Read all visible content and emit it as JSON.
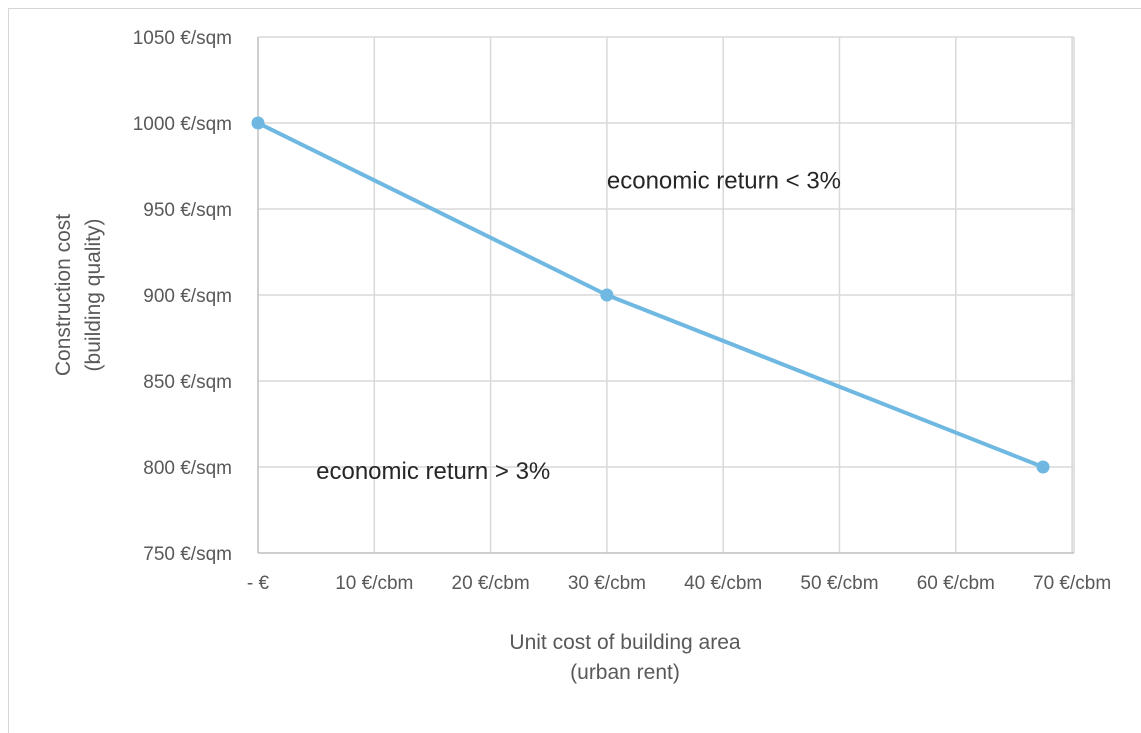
{
  "chart_data": {
    "type": "line",
    "x_ticks": [
      "- €",
      "10 €/cbm",
      "20 €/cbm",
      "30 €/cbm",
      "40 €/cbm",
      "50 €/cbm",
      "60 €/cbm",
      "70 €/cbm"
    ],
    "y_ticks": [
      "1050 €/sqm",
      "1000 €/sqm",
      "950 €/sqm",
      "900 €/sqm",
      "850 €/sqm",
      "800 €/sqm",
      "750 €/sqm"
    ],
    "xlabel": [
      "Unit cost of building area",
      "(urban rent)"
    ],
    "ylabel": [
      "Construction cost",
      "(building quality)"
    ],
    "xlim": [
      0,
      70
    ],
    "ylim": [
      750,
      1050
    ],
    "grid": true,
    "series": [
      {
        "x": [
          0,
          30,
          67.5
        ],
        "y": [
          1000,
          900,
          800
        ]
      }
    ],
    "annotations": [
      {
        "text": "economic return < 3%",
        "x": 30,
        "y": 962
      },
      {
        "text": "economic return > 3%",
        "x": 5,
        "y": 793
      }
    ],
    "colors": {
      "line": "#6fb8e1",
      "grid": "#d9d9d9",
      "axis": "#bfbfbf"
    }
  }
}
